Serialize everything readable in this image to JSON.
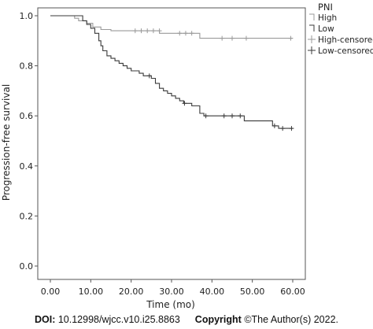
{
  "chart_data": {
    "type": "line",
    "subtype": "kaplan-meier",
    "xlabel": "Time (mo)",
    "ylabel": "Progression-free survival",
    "xlim": [
      0,
      60
    ],
    "ylim": [
      0,
      1.0
    ],
    "x_ticks": [
      "0.00",
      "10.00",
      "20.00",
      "30.00",
      "40.00",
      "50.00",
      "60.00"
    ],
    "y_ticks": [
      "0.0",
      "0.2",
      "0.4",
      "0.6",
      "0.8",
      "1.0"
    ],
    "grid": false,
    "legend_title": "PNI",
    "legend_position": "right",
    "legend": [
      "High",
      "Low",
      "High-censored",
      "Low-censored"
    ],
    "series": [
      {
        "name": "High",
        "color": "#9a9a9a",
        "steps": [
          [
            0,
            1.0
          ],
          [
            6,
            0.99
          ],
          [
            7,
            0.98
          ],
          [
            9,
            0.97
          ],
          [
            10.5,
            0.955
          ],
          [
            12.5,
            0.945
          ],
          [
            15,
            0.94
          ],
          [
            27,
            0.93
          ],
          [
            37,
            0.91
          ],
          [
            60,
            0.91
          ]
        ],
        "censored": [
          [
            21,
            0.94
          ],
          [
            22.5,
            0.94
          ],
          [
            24,
            0.94
          ],
          [
            25.5,
            0.94
          ],
          [
            27,
            0.94
          ],
          [
            32,
            0.93
          ],
          [
            33.5,
            0.93
          ],
          [
            35,
            0.93
          ],
          [
            42.5,
            0.91
          ],
          [
            45,
            0.91
          ],
          [
            48.5,
            0.91
          ],
          [
            59.5,
            0.91
          ]
        ]
      },
      {
        "name": "Low",
        "color": "#3a3a3a",
        "steps": [
          [
            0,
            1.0
          ],
          [
            8,
            0.98
          ],
          [
            9,
            0.965
          ],
          [
            10,
            0.95
          ],
          [
            11,
            0.93
          ],
          [
            12,
            0.9
          ],
          [
            12.5,
            0.88
          ],
          [
            13,
            0.86
          ],
          [
            14,
            0.84
          ],
          [
            15,
            0.83
          ],
          [
            16,
            0.82
          ],
          [
            17,
            0.81
          ],
          [
            18,
            0.8
          ],
          [
            19,
            0.79
          ],
          [
            20,
            0.78
          ],
          [
            22,
            0.77
          ],
          [
            23,
            0.76
          ],
          [
            25,
            0.75
          ],
          [
            26,
            0.73
          ],
          [
            27,
            0.71
          ],
          [
            28,
            0.7
          ],
          [
            29,
            0.69
          ],
          [
            30,
            0.68
          ],
          [
            31,
            0.67
          ],
          [
            32,
            0.66
          ],
          [
            33,
            0.65
          ],
          [
            35,
            0.64
          ],
          [
            37,
            0.61
          ],
          [
            38,
            0.6
          ],
          [
            48,
            0.58
          ],
          [
            55,
            0.56
          ],
          [
            56.5,
            0.55
          ],
          [
            60,
            0.55
          ]
        ],
        "censored": [
          [
            24.5,
            0.76
          ],
          [
            33.2,
            0.65
          ],
          [
            38.5,
            0.6
          ],
          [
            43,
            0.6
          ],
          [
            45,
            0.6
          ],
          [
            47,
            0.6
          ],
          [
            55.5,
            0.56
          ],
          [
            57.5,
            0.55
          ],
          [
            59.7,
            0.55
          ]
        ]
      }
    ]
  },
  "footer": {
    "doi_label": "DOI:",
    "doi_value": "10.12998/wjcc.v10.i25.8863",
    "copyright_label": "Copyright",
    "copyright_value": "©The Author(s) 2022."
  }
}
